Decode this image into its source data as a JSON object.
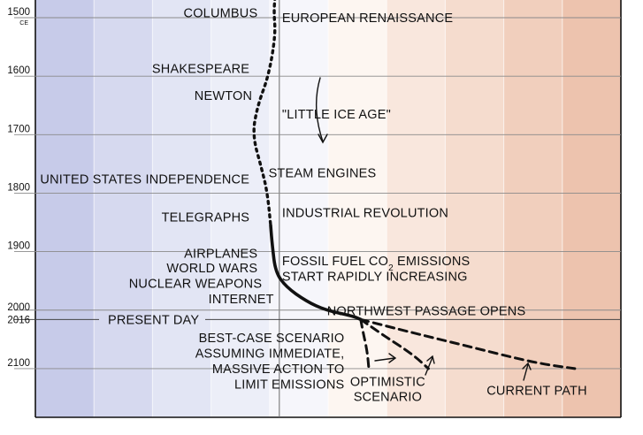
{
  "chart_data": {
    "type": "line",
    "y_axis": {
      "ticks": [
        "1500",
        "1600",
        "1700",
        "1800",
        "1900",
        "2000",
        "2016",
        "2100"
      ],
      "tick_values": [
        1500,
        1600,
        1700,
        1800,
        1900,
        2000,
        2016,
        2100
      ],
      "era_label": "CE",
      "range": [
        1465,
        2180
      ]
    },
    "x_axis": {
      "range": [
        -4.5,
        6.3
      ],
      "temperature_bands": [
        "#c7cbe9",
        "#d6d9ef",
        "#e2e5f4",
        "#eceef8",
        "#f6f6fb",
        "#fdf6f1",
        "#f9e7dd",
        "#f5dcce",
        "#f1cfbd",
        "#edc3ae"
      ]
    },
    "history_line": {
      "dotted": [
        [
          -0.08,
          1465
        ],
        [
          -0.1,
          1490
        ],
        [
          -0.07,
          1530
        ],
        [
          -0.2,
          1600
        ],
        [
          -0.4,
          1650
        ],
        [
          -0.5,
          1700
        ],
        [
          -0.32,
          1760
        ],
        [
          -0.22,
          1800
        ],
        [
          -0.16,
          1855
        ]
      ],
      "solid": [
        [
          -0.16,
          1855
        ],
        [
          -0.13,
          1890
        ],
        [
          -0.07,
          1935
        ],
        [
          0.12,
          1960
        ],
        [
          0.5,
          1985
        ],
        [
          0.85,
          2000
        ],
        [
          1.35,
          2010
        ],
        [
          1.5,
          2016
        ]
      ]
    },
    "scenarios": [
      {
        "name": "best-case",
        "points": [
          [
            1.5,
            2016
          ],
          [
            1.55,
            2040
          ],
          [
            1.62,
            2070
          ],
          [
            1.65,
            2100
          ]
        ]
      },
      {
        "name": "optimistic",
        "points": [
          [
            1.5,
            2016
          ],
          [
            1.95,
            2045
          ],
          [
            2.45,
            2075
          ],
          [
            2.75,
            2100
          ]
        ]
      },
      {
        "name": "current",
        "points": [
          [
            1.5,
            2016
          ],
          [
            2.3,
            2035
          ],
          [
            3.4,
            2060
          ],
          [
            4.7,
            2090
          ],
          [
            5.45,
            2100
          ]
        ]
      }
    ],
    "present_day": {
      "label": "PRESENT DAY",
      "year": 2016
    },
    "annotations": {
      "left": [
        {
          "text": "COLUMBUS",
          "year": 1492
        },
        {
          "text": "SHAKESPEARE",
          "year": 1587
        },
        {
          "text": "NEWTON",
          "year": 1633
        },
        {
          "text": "UNITED STATES INDEPENDENCE",
          "year": 1776
        },
        {
          "text": "TELEGRAPHS",
          "year": 1841
        },
        {
          "text": "AIRPLANES",
          "year": 1903
        },
        {
          "text": "WORLD WARS",
          "year": 1928
        },
        {
          "text": "NUCLEAR WEAPONS",
          "year": 1954
        },
        {
          "text": "INTERNET",
          "year": 1981
        }
      ],
      "right": [
        {
          "text": "EUROPEAN RENAISSANCE",
          "year": 1500
        },
        {
          "text": "\"LITTLE ICE AGE\"",
          "year": 1665
        },
        {
          "text": "STEAM ENGINES",
          "year": 1765
        },
        {
          "text": "INDUSTRIAL REVOLUTION",
          "year": 1833
        },
        {
          "text": "FOSSIL FUEL CO",
          "subscript": "2",
          "suffix": " EMISSIONS",
          "year": 1916
        },
        {
          "text": "START RAPIDLY INCREASING",
          "year": 1942
        },
        {
          "text": "NORTHWEST PASSAGE OPENS",
          "year": 2001
        }
      ],
      "scenario_labels": {
        "best_case": [
          "BEST-CASE SCENARIO",
          "ASSUMING IMMEDIATE,",
          "MASSIVE ACTION TO",
          "LIMIT EMISSIONS"
        ],
        "optimistic": [
          "OPTIMISTIC",
          "SCENARIO"
        ],
        "current": [
          "CURRENT PATH"
        ]
      }
    }
  }
}
